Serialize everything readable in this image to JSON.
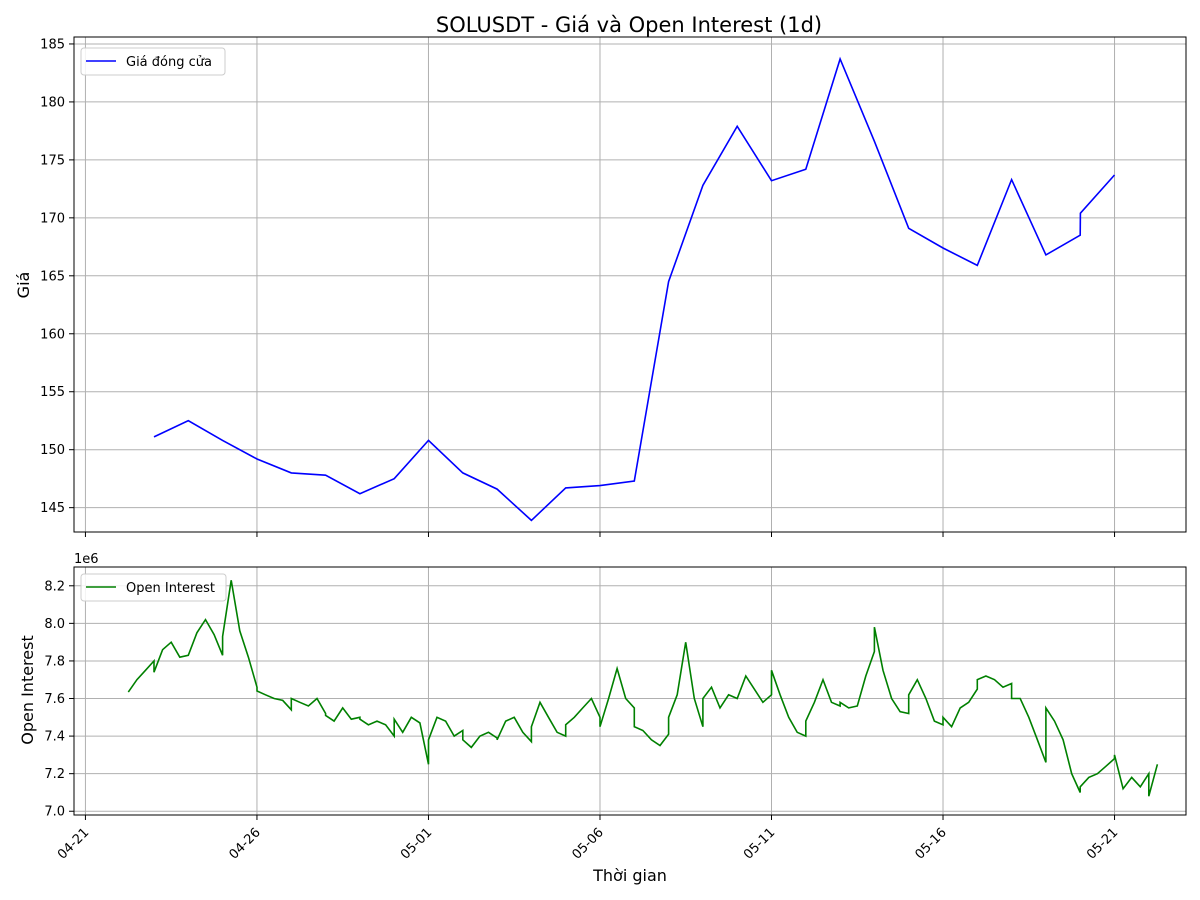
{
  "chart_data": {
    "type": "line",
    "title": "SOLUSDT - Giá và Open Interest (1d)",
    "xlabel": "Thời gian",
    "x_tick_labels": [
      "04-21",
      "04-26",
      "05-01",
      "05-06",
      "05-11",
      "05-16",
      "05-21"
    ],
    "x_tick_dates": [
      "2025-04-21",
      "2025-04-26",
      "2025-05-01",
      "2025-05-06",
      "2025-05-11",
      "2025-05-16",
      "2025-05-21"
    ],
    "xlim": [
      "2025-04-20T16:00",
      "2025-05-23T02:00"
    ],
    "panels": [
      {
        "ylabel": "Giá",
        "ylim": [
          142.9,
          185.6
        ],
        "y_ticks": [
          145,
          150,
          155,
          160,
          165,
          170,
          175,
          180,
          185
        ],
        "grid": true,
        "legend_position": "top-left",
        "series": [
          {
            "name": "Giá đóng cửa",
            "color": "#0000ff",
            "x": [
              "2025-04-23",
              "2025-04-24",
              "2025-04-25",
              "2025-04-26",
              "2025-04-27",
              "2025-04-28",
              "2025-04-29",
              "2025-04-30",
              "2025-05-01",
              "2025-05-02",
              "2025-05-03",
              "2025-05-04",
              "2025-05-05",
              "2025-05-06",
              "2025-05-07",
              "2025-05-08",
              "2025-05-09",
              "2025-05-10",
              "2025-05-11",
              "2025-05-12",
              "2025-05-13",
              "2025-05-14",
              "2025-05-15",
              "2025-05-16",
              "2025-05-17",
              "2025-05-18",
              "2025-05-19",
              "2025-05-20",
              "2025-05-20T00:05",
              "2025-05-21"
            ],
            "y": [
              151.1,
              152.5,
              150.8,
              149.2,
              148.0,
              147.8,
              146.2,
              147.5,
              150.8,
              148.0,
              146.6,
              143.9,
              146.7,
              146.9,
              147.3,
              164.5,
              172.8,
              177.9,
              173.2,
              174.2,
              183.7,
              176.6,
              169.1,
              167.4,
              165.9,
              173.3,
              166.8,
              168.5,
              170.4,
              173.7
            ]
          }
        ]
      },
      {
        "ylabel": "Open Interest",
        "offset_label": "1e6",
        "ylim": [
          6.98,
          8.3
        ],
        "y_ticks": [
          7.0,
          7.2,
          7.4,
          7.6,
          7.8,
          8.0,
          8.2
        ],
        "y_tick_labels": [
          "7.0",
          "7.2",
          "7.4",
          "7.6",
          "7.8",
          "8.0",
          "8.2"
        ],
        "grid": true,
        "legend_position": "top-left",
        "series": [
          {
            "name": "Open Interest",
            "color": "#008000",
            "y_unit": "1e6",
            "x": [
              "2025-04-22T06:00",
              "2025-04-22T12:00",
              "2025-04-22T18:00",
              "2025-04-23T00:00",
              "2025-04-23T00:00",
              "2025-04-23T06:00",
              "2025-04-23T12:00",
              "2025-04-23T18:00",
              "2025-04-24T00:00",
              "2025-04-24T00:00",
              "2025-04-24T06:00",
              "2025-04-24T12:00",
              "2025-04-24T18:00",
              "2025-04-25T00:00",
              "2025-04-25T00:00",
              "2025-04-25T06:00",
              "2025-04-25T12:00",
              "2025-04-25T18:00",
              "2025-04-26T00:00",
              "2025-04-26T00:00",
              "2025-04-26T06:00",
              "2025-04-26T12:00",
              "2025-04-26T18:00",
              "2025-04-27T00:00",
              "2025-04-27T00:00",
              "2025-04-27T06:00",
              "2025-04-27T12:00",
              "2025-04-27T18:00",
              "2025-04-28T00:00",
              "2025-04-28T00:00",
              "2025-04-28T06:00",
              "2025-04-28T12:00",
              "2025-04-28T18:00",
              "2025-04-29T00:00",
              "2025-04-29T00:00",
              "2025-04-29T06:00",
              "2025-04-29T12:00",
              "2025-04-29T18:00",
              "2025-04-30T00:00",
              "2025-04-30T00:00",
              "2025-04-30T06:00",
              "2025-04-30T12:00",
              "2025-04-30T18:00",
              "2025-05-01T00:00",
              "2025-05-01T00:00",
              "2025-05-01T06:00",
              "2025-05-01T12:00",
              "2025-05-01T18:00",
              "2025-05-02T00:00",
              "2025-05-02T00:00",
              "2025-05-02T06:00",
              "2025-05-02T12:00",
              "2025-05-02T18:00",
              "2025-05-03T00:00",
              "2025-05-03T00:00",
              "2025-05-03T06:00",
              "2025-05-03T12:00",
              "2025-05-03T18:00",
              "2025-05-04T00:00",
              "2025-05-04T00:00",
              "2025-05-04T06:00",
              "2025-05-04T12:00",
              "2025-05-04T18:00",
              "2025-05-05T00:00",
              "2025-05-05T00:00",
              "2025-05-05T06:00",
              "2025-05-05T12:00",
              "2025-05-05T18:00",
              "2025-05-06T00:00",
              "2025-05-06T00:00",
              "2025-05-06T06:00",
              "2025-05-06T12:00",
              "2025-05-06T18:00",
              "2025-05-07T00:00",
              "2025-05-07T00:00",
              "2025-05-07T06:00",
              "2025-05-07T12:00",
              "2025-05-07T18:00",
              "2025-05-08T00:00",
              "2025-05-08T00:00",
              "2025-05-08T06:00",
              "2025-05-08T12:00",
              "2025-05-08T18:00",
              "2025-05-09T00:00",
              "2025-05-09T00:00",
              "2025-05-09T06:00",
              "2025-05-09T12:00",
              "2025-05-09T18:00",
              "2025-05-10T00:00",
              "2025-05-10T00:00",
              "2025-05-10T06:00",
              "2025-05-10T12:00",
              "2025-05-10T18:00",
              "2025-05-11T00:00",
              "2025-05-11T00:00",
              "2025-05-11T06:00",
              "2025-05-11T12:00",
              "2025-05-11T18:00",
              "2025-05-12T00:00",
              "2025-05-12T00:00",
              "2025-05-12T06:00",
              "2025-05-12T12:00",
              "2025-05-12T18:00",
              "2025-05-13T00:00",
              "2025-05-13T00:00",
              "2025-05-13T06:00",
              "2025-05-13T12:00",
              "2025-05-13T18:00",
              "2025-05-14T00:00",
              "2025-05-14T00:00",
              "2025-05-14T06:00",
              "2025-05-14T12:00",
              "2025-05-14T18:00",
              "2025-05-15T00:00",
              "2025-05-15T00:00",
              "2025-05-15T06:00",
              "2025-05-15T12:00",
              "2025-05-15T18:00",
              "2025-05-16T00:00",
              "2025-05-16T00:00",
              "2025-05-16T06:00",
              "2025-05-16T12:00",
              "2025-05-16T18:00",
              "2025-05-17T00:00",
              "2025-05-17T00:00",
              "2025-05-17T06:00",
              "2025-05-17T12:00",
              "2025-05-17T18:00",
              "2025-05-18T00:00",
              "2025-05-18T00:00",
              "2025-05-18T06:00",
              "2025-05-18T12:00",
              "2025-05-18T18:00",
              "2025-05-19T00:00",
              "2025-05-19T00:00",
              "2025-05-19T06:00",
              "2025-05-19T12:00",
              "2025-05-19T18:00",
              "2025-05-20T00:00",
              "2025-05-20T00:00",
              "2025-05-20T06:00",
              "2025-05-20T12:00",
              "2025-05-20T18:00",
              "2025-05-21T00:00",
              "2025-05-21T00:00",
              "2025-05-21T06:00",
              "2025-05-21T12:00",
              "2025-05-21T18:00",
              "2025-05-22T00:00",
              "2025-05-22T00:00",
              "2025-05-22T06:00"
            ],
            "y": [
              7.634,
              7.7,
              7.75,
              7.8,
              7.74,
              7.86,
              7.9,
              7.82,
              7.83,
              7.83,
              7.95,
              8.02,
              7.94,
              7.83,
              7.93,
              8.23,
              7.96,
              7.82,
              7.66,
              7.64,
              7.62,
              7.6,
              7.59,
              7.54,
              7.6,
              7.58,
              7.56,
              7.6,
              7.52,
              7.51,
              7.48,
              7.55,
              7.49,
              7.5,
              7.49,
              7.46,
              7.48,
              7.46,
              7.4,
              7.49,
              7.42,
              7.5,
              7.47,
              7.25,
              7.38,
              7.5,
              7.48,
              7.4,
              7.43,
              7.38,
              7.34,
              7.4,
              7.42,
              7.39,
              7.38,
              7.48,
              7.5,
              7.42,
              7.37,
              7.45,
              7.58,
              7.5,
              7.42,
              7.4,
              7.46,
              7.5,
              7.55,
              7.6,
              7.5,
              7.45,
              7.6,
              7.76,
              7.6,
              7.55,
              7.45,
              7.43,
              7.38,
              7.35,
              7.41,
              7.5,
              7.62,
              7.9,
              7.6,
              7.45,
              7.6,
              7.66,
              7.55,
              7.62,
              7.6,
              7.6,
              7.72,
              7.65,
              7.58,
              7.62,
              7.75,
              7.62,
              7.5,
              7.42,
              7.4,
              7.48,
              7.58,
              7.7,
              7.58,
              7.56,
              7.58,
              7.55,
              7.56,
              7.72,
              7.85,
              7.98,
              7.75,
              7.6,
              7.53,
              7.52,
              7.62,
              7.7,
              7.6,
              7.48,
              7.46,
              7.5,
              7.45,
              7.55,
              7.58,
              7.65,
              7.7,
              7.72,
              7.7,
              7.66,
              7.68,
              7.6,
              7.6,
              7.5,
              7.38,
              7.26,
              7.55,
              7.48,
              7.38,
              7.2,
              7.1,
              7.13,
              7.18,
              7.2,
              7.24,
              7.28,
              7.3,
              7.12,
              7.18,
              7.13,
              7.2,
              7.08,
              7.25
            ]
          }
        ]
      }
    ]
  }
}
